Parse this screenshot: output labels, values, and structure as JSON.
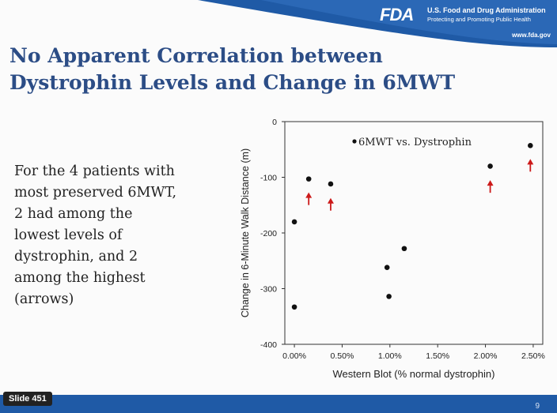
{
  "header": {
    "fda_logo_text": "FDA",
    "agency_name": "U.S. Food and Drug Administration",
    "tagline": "Protecting and Promoting Public Health",
    "url": "www.fda.gov"
  },
  "slide": {
    "title_line1": "No Apparent Correlation between",
    "title_line2": "Dystrophin Levels and Change in 6MWT",
    "body_lines": [
      "For the 4 patients with",
      "most preserved 6MWT,",
      "2 had among the",
      "lowest levels of",
      "dystrophin, and 2",
      "among the highest",
      "(arrows)"
    ],
    "slide_label": "Slide 451",
    "page_number": "9"
  },
  "colors": {
    "title": "#2c4d86",
    "header_blue": "#1f5aa6",
    "arrow": "#cc1a1a"
  },
  "chart_data": {
    "type": "scatter",
    "xlabel": "Western Blot (% normal dystrophin)",
    "ylabel": "Change in 6-Minute Walk Distance (m)",
    "xlim": [
      -0.1,
      2.6
    ],
    "ylim": [
      -400,
      0
    ],
    "x_ticks": [
      {
        "value": 0.0,
        "label": "0.00%"
      },
      {
        "value": 0.5,
        "label": "0.50%"
      },
      {
        "value": 1.0,
        "label": "1.00%"
      },
      {
        "value": 1.5,
        "label": "1.50%"
      },
      {
        "value": 2.0,
        "label": "2.00%"
      },
      {
        "value": 2.5,
        "label": "2.50%"
      }
    ],
    "y_ticks": [
      {
        "value": 0,
        "label": "0"
      },
      {
        "value": -100,
        "label": "-100"
      },
      {
        "value": -200,
        "label": "-200"
      },
      {
        "value": -300,
        "label": "-300"
      },
      {
        "value": -400,
        "label": "-400"
      }
    ],
    "legend": "6MWT vs. Dystrophin",
    "legend_position": "top-right",
    "points": [
      {
        "x": 0.0,
        "y": -180
      },
      {
        "x": 0.0,
        "y": -333
      },
      {
        "x": 0.15,
        "y": -103
      },
      {
        "x": 0.38,
        "y": -112
      },
      {
        "x": 0.97,
        "y": -262
      },
      {
        "x": 0.99,
        "y": -314
      },
      {
        "x": 1.15,
        "y": -228
      },
      {
        "x": 2.05,
        "y": -80
      },
      {
        "x": 2.47,
        "y": -43
      }
    ],
    "arrows": [
      {
        "x": 0.15,
        "y": -130
      },
      {
        "x": 0.38,
        "y": -140
      },
      {
        "x": 2.05,
        "y": -108
      },
      {
        "x": 2.47,
        "y": -70
      }
    ]
  }
}
